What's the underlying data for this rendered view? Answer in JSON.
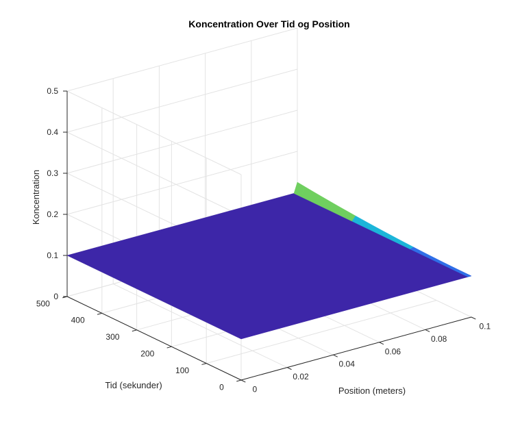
{
  "chart_data": {
    "type": "surface",
    "title": "Koncentration Over Tid og Position",
    "xlabel": "Position (meters)",
    "ylabel": "Tid (sekunder)",
    "zlabel": "Koncentration",
    "xlim": [
      0,
      0.1
    ],
    "ylim": [
      0,
      500
    ],
    "zlim": [
      0,
      0.5
    ],
    "xticks": [
      "0",
      "0.02",
      "0.04",
      "0.06",
      "0.08",
      "0.1"
    ],
    "yticks": [
      "0",
      "100",
      "200",
      "300",
      "400",
      "500"
    ],
    "zticks": [
      "0",
      "0.1",
      "0.2",
      "0.3",
      "0.4",
      "0.5"
    ],
    "grid": true,
    "colormap": "parula",
    "surface_value": 0.1,
    "edge_peak": {
      "x": 0.1,
      "y": 500,
      "value": 0.125
    },
    "colors": {
      "surface": "#3d26a8",
      "edge_blue": "#2f6fe8",
      "edge_cyan": "#1cb5d9",
      "edge_green": "#6fcf5f",
      "axis": "#262626",
      "grid": "#e3e3e3"
    }
  }
}
